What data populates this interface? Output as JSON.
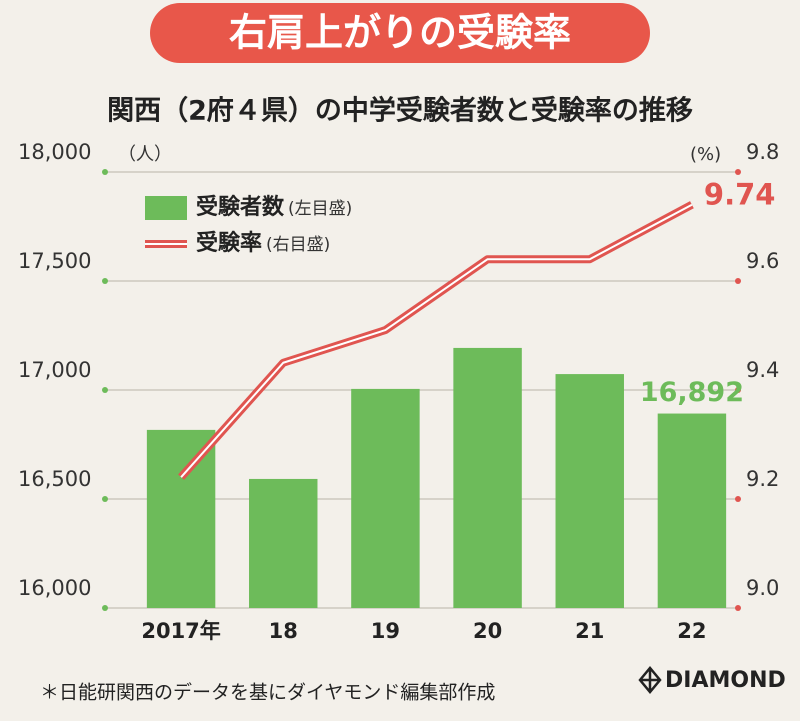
{
  "banner": "右肩上がりの受験率",
  "chart_data": {
    "type": "combo",
    "title": "関西（2府４県）の中学受験者数と受験率の推移",
    "y_label": "（人）",
    "y2_label": "(%)",
    "categories": [
      "2017年",
      "18",
      "19",
      "20",
      "21",
      "22"
    ],
    "series": [
      {
        "name": "受験者数",
        "note": "(左目盛)",
        "type": "bar",
        "color": "#6dbb5a",
        "values": [
          16817,
          16592,
          17005,
          17193,
          17073,
          16892
        ],
        "value_labels": [
          null,
          null,
          null,
          null,
          null,
          "16,892"
        ]
      },
      {
        "name": "受験率",
        "note": "(右目盛)",
        "type": "line",
        "axis": "y2",
        "color": "#e05550",
        "values": [
          9.24,
          9.45,
          9.51,
          9.64,
          9.64,
          9.74
        ]
      }
    ],
    "ylim": [
      16000,
      18000
    ],
    "yticks": [
      {
        "value": 16000,
        "label": "16,000"
      },
      {
        "value": 16500,
        "label": "16,500"
      },
      {
        "value": 17000,
        "label": "17,000"
      },
      {
        "value": 17500,
        "label": "17,500"
      },
      {
        "value": 18000,
        "label": "18,000"
      }
    ],
    "y2lim": [
      9.0,
      9.8
    ],
    "y2ticks": [
      {
        "value": 9,
        "label": "9.0"
      },
      9.2,
      9.4,
      9.6,
      9.8
    ],
    "grid": true
  },
  "footnote": "＊日能研関西のデータを基にダイヤモンド編集部作成",
  "brand": "DIAMOND"
}
